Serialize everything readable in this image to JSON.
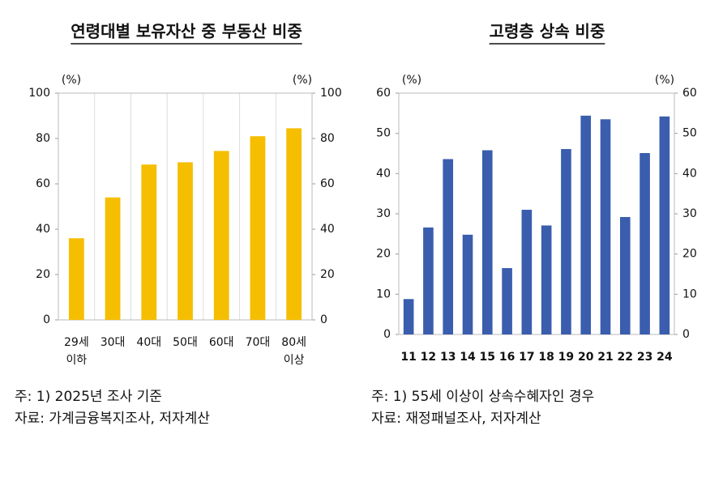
{
  "chart_data": [
    {
      "type": "bar",
      "title": "연령대별 보유자산 중 부동산 비중",
      "categories": [
        [
          "29세",
          "이하"
        ],
        [
          "30대"
        ],
        [
          "40대"
        ],
        [
          "50대"
        ],
        [
          "60대"
        ],
        [
          "70대"
        ],
        [
          "80세",
          "이상"
        ]
      ],
      "values": [
        36,
        54,
        68.5,
        69.5,
        74.5,
        81,
        84.5
      ],
      "color": "#f5be00",
      "y_unit": "(%)",
      "y2_unit": "(%)",
      "ylim": [
        0,
        100
      ],
      "yticks": [
        0,
        20,
        40,
        60,
        80,
        100
      ],
      "y2lim": [
        0,
        100
      ],
      "y2ticks": [
        0,
        20,
        40,
        60,
        80,
        100
      ],
      "grid": "x",
      "bold_categories": false,
      "notes": [
        "주: 1) 2025년 조사 기준",
        "자료: 가계금융복지조사, 저자계산"
      ]
    },
    {
      "type": "bar",
      "title": "고령층 상속 비중",
      "categories": [
        [
          "11"
        ],
        [
          "12"
        ],
        [
          "13"
        ],
        [
          "14"
        ],
        [
          "15"
        ],
        [
          "16"
        ],
        [
          "17"
        ],
        [
          "18"
        ],
        [
          "19"
        ],
        [
          "20"
        ],
        [
          "21"
        ],
        [
          "22"
        ],
        [
          "23"
        ],
        [
          "24"
        ]
      ],
      "values": [
        8.8,
        26.6,
        43.6,
        24.8,
        45.8,
        16.5,
        31,
        27.1,
        46.1,
        54.4,
        53.5,
        29.2,
        45.1,
        54.2
      ],
      "color": "#3a5dae",
      "y_unit": "(%)",
      "y2_unit": "(%)",
      "ylim": [
        0,
        60
      ],
      "yticks": [
        0,
        10,
        20,
        30,
        40,
        50,
        60
      ],
      "y2lim": [
        0,
        60
      ],
      "y2ticks": [
        0,
        10,
        20,
        30,
        40,
        50,
        60
      ],
      "grid": false,
      "bold_categories": true,
      "notes": [
        "주: 1) 55세 이상이 상속수혜자인 경우",
        "자료: 재정패널조사, 저자계산"
      ]
    }
  ]
}
